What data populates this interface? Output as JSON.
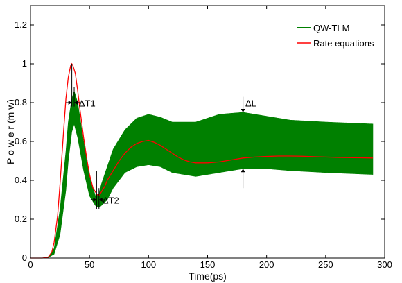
{
  "chart_data": {
    "type": "line",
    "title": "",
    "xlabel": "Time(ps)",
    "ylabel": "P o w e r (m w)",
    "xlim": [
      0,
      300
    ],
    "ylim": [
      0,
      1.3
    ],
    "x_ticks": [
      0,
      50,
      100,
      150,
      200,
      250,
      300
    ],
    "y_ticks": [
      0,
      0.2,
      0.4,
      0.6,
      0.8,
      1,
      1.2
    ],
    "x_tick_labels": [
      "0",
      "50",
      "100",
      "150",
      "200",
      "250",
      "300"
    ],
    "y_tick_labels": [
      "0",
      "0.2",
      "0.4",
      "0.6",
      "0.8",
      "1",
      "1.2"
    ],
    "grid": false,
    "legend_position": "top-right",
    "series": [
      {
        "name": "QW-TLM",
        "kind": "band",
        "color": "#008000",
        "x": [
          0,
          10,
          15,
          20,
          25,
          30,
          32,
          35,
          37,
          40,
          45,
          50,
          55,
          58,
          60,
          65,
          70,
          80,
          90,
          100,
          110,
          120,
          140,
          160,
          180,
          200,
          220,
          250,
          290
        ],
        "upper": [
          0,
          0,
          0.005,
          0.05,
          0.25,
          0.55,
          0.7,
          0.82,
          0.86,
          0.8,
          0.6,
          0.42,
          0.32,
          0.33,
          0.38,
          0.47,
          0.56,
          0.66,
          0.72,
          0.74,
          0.725,
          0.7,
          0.7,
          0.74,
          0.75,
          0.73,
          0.71,
          0.7,
          0.69
        ],
        "lower": [
          0,
          0,
          0.003,
          0.02,
          0.12,
          0.35,
          0.5,
          0.65,
          0.69,
          0.62,
          0.45,
          0.32,
          0.27,
          0.26,
          0.27,
          0.3,
          0.36,
          0.44,
          0.47,
          0.48,
          0.47,
          0.44,
          0.42,
          0.44,
          0.46,
          0.46,
          0.45,
          0.44,
          0.43
        ]
      },
      {
        "name": "Rate equations",
        "kind": "line",
        "color": "#ff0000",
        "x": [
          0,
          10,
          15,
          18,
          20,
          23,
          25,
          28,
          30,
          32,
          34,
          35,
          36,
          38,
          40,
          42,
          45,
          48,
          50,
          53,
          56,
          58,
          60,
          63,
          65,
          70,
          75,
          80,
          85,
          90,
          95,
          100,
          105,
          110,
          115,
          120,
          125,
          130,
          135,
          140,
          150,
          160,
          170,
          180,
          190,
          200,
          210,
          220,
          230,
          240,
          250,
          260,
          270,
          280,
          290
        ],
        "y": [
          0,
          0,
          0.005,
          0.03,
          0.08,
          0.22,
          0.38,
          0.65,
          0.82,
          0.93,
          0.99,
          1.0,
          0.99,
          0.95,
          0.86,
          0.76,
          0.62,
          0.5,
          0.43,
          0.36,
          0.33,
          0.32,
          0.34,
          0.37,
          0.4,
          0.45,
          0.5,
          0.54,
          0.57,
          0.59,
          0.6,
          0.605,
          0.595,
          0.58,
          0.56,
          0.54,
          0.52,
          0.505,
          0.495,
          0.49,
          0.49,
          0.495,
          0.505,
          0.515,
          0.52,
          0.523,
          0.525,
          0.525,
          0.524,
          0.522,
          0.52,
          0.518,
          0.517,
          0.516,
          0.515
        ]
      }
    ],
    "annotations": [
      {
        "text": "ΔT1",
        "x": 37,
        "y": 0.8
      },
      {
        "text": "ΔT2",
        "x": 60,
        "y": 0.3
      },
      {
        "text": "ΔL",
        "x": 180,
        "y": 0.78
      }
    ]
  }
}
